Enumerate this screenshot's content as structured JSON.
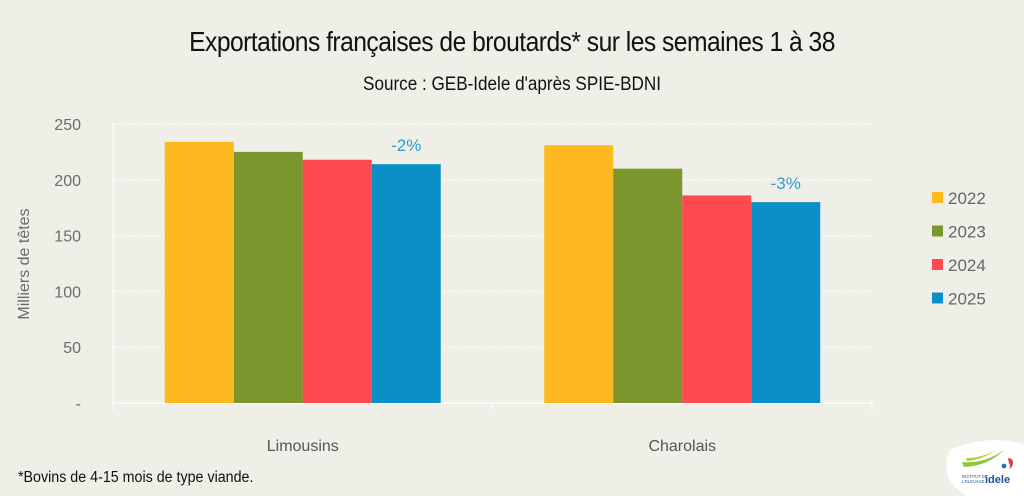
{
  "title": "Exportations françaises de broutards* sur les semaines 1 à 38",
  "subtitle": "Source : GEB-Idele d'après SPIE-BDNI",
  "footnote": "*Bovins de 4-15 mois de type viande.",
  "logo": {
    "text_top": "INSTITUT DE",
    "text_bottom": "L'ELEVAGE",
    "brand": "idele"
  },
  "chart_data": {
    "type": "bar",
    "title": "Exportations françaises de broutards* sur les semaines 1 à 38",
    "subtitle": "Source : GEB-Idele d'après SPIE-BDNI",
    "xlabel": "",
    "ylabel": "Milliers de têtes",
    "ylim": [
      0,
      250
    ],
    "yticks": [
      0,
      50,
      100,
      150,
      200,
      250
    ],
    "ytick_labels": [
      "-",
      "50",
      "100",
      "150",
      "200",
      "250"
    ],
    "grid": true,
    "legend_position": "right",
    "categories": [
      "Limousins",
      "Charolais"
    ],
    "series": [
      {
        "name": "2022",
        "color": "#fdb91f",
        "values": [
          234,
          231
        ]
      },
      {
        "name": "2023",
        "color": "#7a972d",
        "values": [
          225,
          210
        ]
      },
      {
        "name": "2024",
        "color": "#ff4a51",
        "values": [
          218,
          186
        ]
      },
      {
        "name": "2025",
        "color": "#0a8fc7",
        "values": [
          214,
          180
        ]
      }
    ],
    "annotations": [
      {
        "category": "Limousins",
        "series": "2025",
        "text": "-2%"
      },
      {
        "category": "Charolais",
        "series": "2025",
        "text": "-3%"
      }
    ]
  }
}
